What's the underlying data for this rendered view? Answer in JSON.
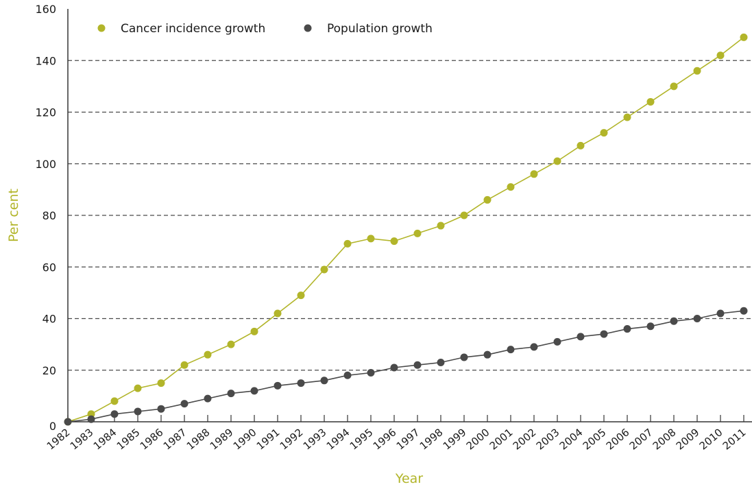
{
  "chart_data": {
    "type": "line",
    "xlabel": "Year",
    "ylabel": "Per cent",
    "ylim": [
      0,
      160
    ],
    "yticks": [
      0,
      20,
      40,
      60,
      80,
      100,
      120,
      140,
      160
    ],
    "grid": "horizontal dashed",
    "legend_position": "top-left",
    "x": [
      "1982",
      "1983",
      "1984",
      "1985",
      "1986",
      "1987",
      "1988",
      "1989",
      "1990",
      "1991",
      "1992",
      "1993",
      "1994",
      "1995",
      "1996",
      "1997",
      "1998",
      "1999",
      "2000",
      "2001",
      "2002",
      "2003",
      "2004",
      "2005",
      "2006",
      "2007",
      "2008",
      "2009",
      "2010",
      "2011"
    ],
    "series": [
      {
        "name": "Cancer incidence growth",
        "color": "#b2b52a",
        "values": [
          0,
          3,
          8,
          13,
          15,
          22,
          26,
          30,
          35,
          42,
          49,
          59,
          69,
          71,
          70,
          73,
          76,
          80,
          86,
          91,
          96,
          101,
          107,
          112,
          118,
          124,
          130,
          136,
          142,
          149
        ]
      },
      {
        "name": "Population growth",
        "color": "#4a4a4a",
        "values": [
          0,
          1,
          3,
          4,
          5,
          7,
          9,
          11,
          12,
          14,
          15,
          16,
          18,
          19,
          21,
          22,
          23,
          25,
          26,
          28,
          29,
          31,
          33,
          34,
          36,
          37,
          39,
          40,
          42,
          43
        ]
      }
    ],
    "axis_title_color": "#b2b52a",
    "grid_color": "#4a4a4a",
    "axis_color": "#333333"
  }
}
